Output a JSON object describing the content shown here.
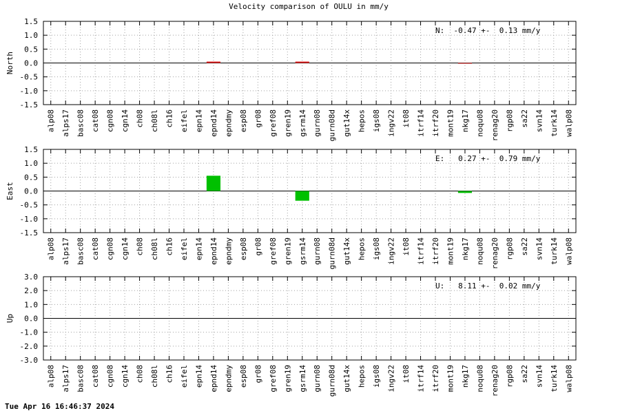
{
  "title": "Velocity comparison of OULU in mm/y",
  "footer": "Tue Apr 16 16:46:37 2024",
  "chart_data": [
    {
      "type": "bar",
      "ylabel": "North",
      "annotation": "N:  -0.47 +-  0.13 mm/y",
      "color": "#e02020",
      "categories": [
        "alp08",
        "alps17",
        "basc08",
        "cat08",
        "cgn08",
        "cgn14",
        "ch08",
        "ch08l",
        "ch16",
        "eifel",
        "epn14",
        "epnd14",
        "epndmy",
        "esp08",
        "gr08",
        "gref08",
        "gren19",
        "gsrm14",
        "gurn08",
        "gurn08d",
        "gut14x",
        "hepos",
        "igs08",
        "ingv22",
        "it08",
        "itrf14",
        "itrf20",
        "mont19",
        "nkg17",
        "noqu08",
        "renag20",
        "rgp08",
        "sa22",
        "svn14",
        "turk14",
        "walp08"
      ],
      "values": [
        null,
        null,
        null,
        null,
        null,
        null,
        null,
        null,
        null,
        null,
        null,
        0.05,
        null,
        null,
        null,
        null,
        null,
        0.05,
        null,
        null,
        null,
        null,
        null,
        null,
        null,
        null,
        null,
        null,
        -0.02,
        null,
        null,
        null,
        null,
        null,
        null,
        null
      ],
      "ylim": [
        -1.5,
        1.5
      ],
      "yticks": [
        -1.5,
        {
          "value": -1,
          "label": "-1.0"
        },
        -0.5,
        {
          "value": 0,
          "label": "0.0"
        },
        0.5,
        {
          "value": 1,
          "label": "1.0"
        },
        1.5
      ],
      "grid": true
    },
    {
      "type": "bar",
      "ylabel": "East",
      "annotation": "E:   0.27 +-  0.79 mm/y",
      "color": "#00c000",
      "categories": [
        "alp08",
        "alps17",
        "basc08",
        "cat08",
        "cgn08",
        "cgn14",
        "ch08",
        "ch08l",
        "ch16",
        "eifel",
        "epn14",
        "epnd14",
        "epndmy",
        "esp08",
        "gr08",
        "gref08",
        "gren19",
        "gsrm14",
        "gurn08",
        "gurn08d",
        "gut14x",
        "hepos",
        "igs08",
        "ingv22",
        "it08",
        "itrf14",
        "itrf20",
        "mont19",
        "nkg17",
        "noqu08",
        "renag20",
        "rgp08",
        "sa22",
        "svn14",
        "turk14",
        "walp08"
      ],
      "values": [
        null,
        null,
        null,
        null,
        null,
        null,
        null,
        null,
        null,
        null,
        null,
        0.55,
        null,
        null,
        null,
        null,
        null,
        -0.35,
        null,
        null,
        null,
        null,
        null,
        null,
        null,
        null,
        null,
        null,
        -0.07,
        null,
        null,
        null,
        null,
        null,
        null,
        null
      ],
      "ylim": [
        -1.5,
        1.5
      ],
      "yticks": [
        -1.5,
        {
          "value": -1,
          "label": "-1.0"
        },
        -0.5,
        {
          "value": 0,
          "label": "0.0"
        },
        0.5,
        {
          "value": 1,
          "label": "1.0"
        },
        1.5
      ],
      "grid": true
    },
    {
      "type": "bar",
      "ylabel": "Up",
      "annotation": "U:   8.11 +-  0.02 mm/y",
      "categories": [
        "alp08",
        "alps17",
        "basc08",
        "cat08",
        "cgn08",
        "cgn14",
        "ch08",
        "ch08l",
        "ch16",
        "eifel",
        "epn14",
        "epnd14",
        "epndmy",
        "esp08",
        "gr08",
        "gref08",
        "gren19",
        "gsrm14",
        "gurn08",
        "gurn08d",
        "gut14x",
        "hepos",
        "igs08",
        "ingv22",
        "it08",
        "itrf14",
        "itrf20",
        "mont19",
        "nkg17",
        "noqu08",
        "renag20",
        "rgp08",
        "sa22",
        "svn14",
        "turk14",
        "walp08"
      ],
      "values": [
        null,
        null,
        null,
        null,
        null,
        null,
        null,
        null,
        null,
        null,
        null,
        null,
        null,
        null,
        null,
        null,
        null,
        null,
        null,
        null,
        null,
        null,
        null,
        null,
        null,
        null,
        null,
        null,
        null,
        null,
        null,
        null,
        null,
        null,
        null,
        null
      ],
      "ylim": [
        -3,
        3
      ],
      "yticks": [
        {
          "value": -3,
          "label": "-3.0"
        },
        {
          "value": -2,
          "label": "-2.0"
        },
        {
          "value": -1,
          "label": "-1.0"
        },
        {
          "value": 0,
          "label": "0.0"
        },
        {
          "value": 1,
          "label": "1.0"
        },
        {
          "value": 2,
          "label": "2.0"
        },
        {
          "value": 3,
          "label": "3.0"
        }
      ],
      "grid": true
    }
  ]
}
